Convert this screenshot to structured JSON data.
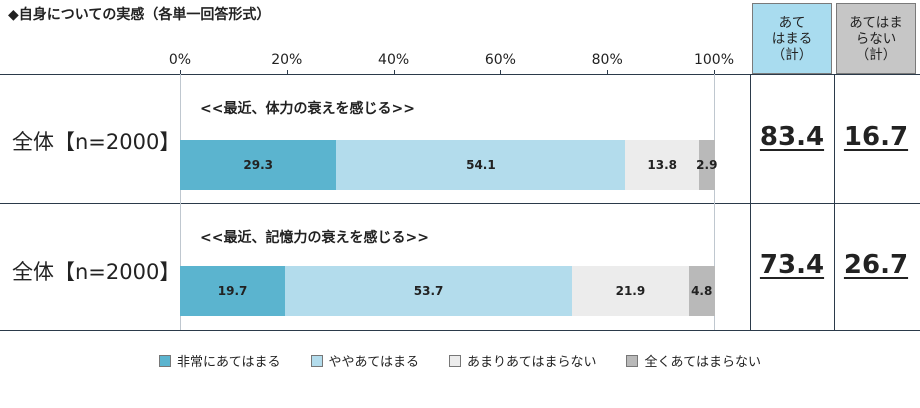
{
  "title": "◆自身についての実感（各単一回答形式）",
  "columns": {
    "yes": [
      "あて",
      "はまる",
      "（計）"
    ],
    "no": [
      "あてはま",
      "らない",
      "（計）"
    ]
  },
  "colors": {
    "very": "#5bb4cf",
    "somewhat": "#b3dcec",
    "not_much": "#ececec",
    "not_at_all": "#b9b9b9",
    "yes_header": "#a9dcef",
    "no_header": "#c6c6c6"
  },
  "chart_data": {
    "type": "bar",
    "orientation": "horizontal",
    "stacked": true,
    "xlim": [
      0,
      100
    ],
    "ticks": [
      "0%",
      "20%",
      "40%",
      "60%",
      "80%",
      "100%"
    ],
    "categories": [
      "全体【n=2000】",
      "全体【n=2000】"
    ],
    "subtitles": [
      "<<最近、体力の衰えを感じる>>",
      "<<最近、記憶力の衰えを感じる>>"
    ],
    "series": [
      {
        "name": "非常にあてはまる",
        "values": [
          29.3,
          19.7
        ]
      },
      {
        "name": "ややあてはまる",
        "values": [
          54.1,
          53.7
        ]
      },
      {
        "name": "あまりあてはまらない",
        "values": [
          13.8,
          21.9
        ]
      },
      {
        "name": "全くあてはまらない",
        "values": [
          2.9,
          4.8
        ]
      }
    ],
    "totals_yes": [
      "83.4",
      "73.4"
    ],
    "totals_no": [
      "16.7",
      "26.7"
    ],
    "legend_position": "bottom"
  }
}
